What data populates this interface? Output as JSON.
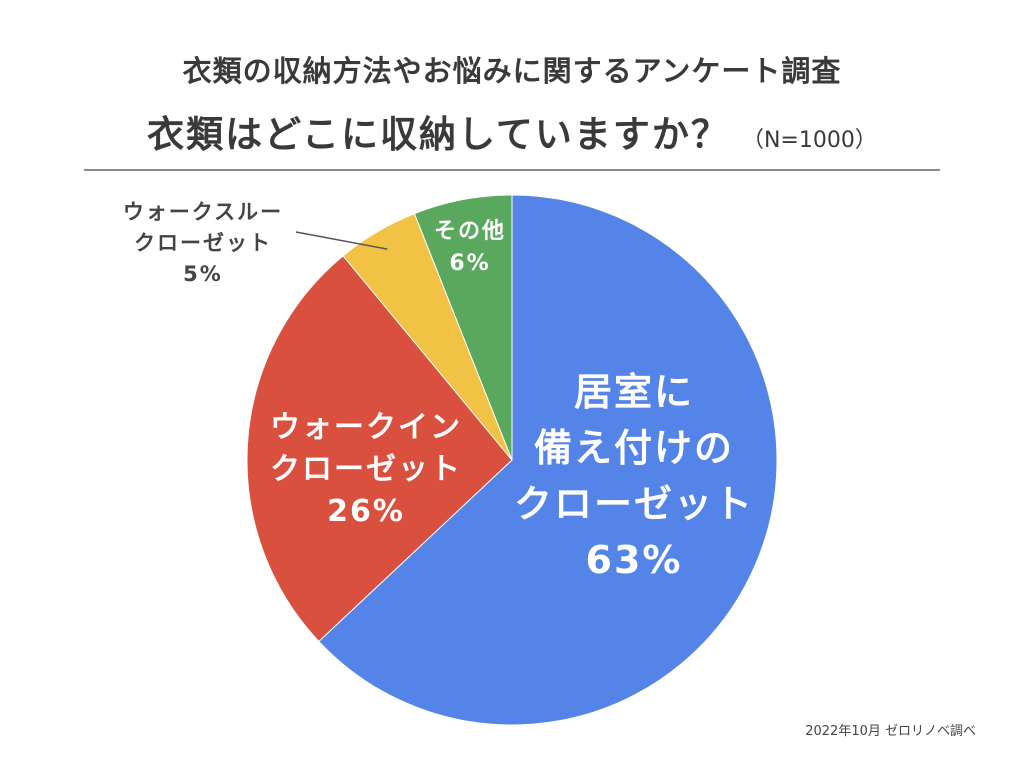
{
  "header": {
    "survey_title": "衣類の収納方法やお悩みに関するアンケート調査",
    "question": "衣類はどこに収納していますか？",
    "sample_size": "（N=1000）"
  },
  "chart_data": {
    "type": "pie",
    "categories": [
      "居室に備え付けのクローゼット",
      "ウォークインクローゼット",
      "ウォークスルークローゼット",
      "その他"
    ],
    "values": [
      63,
      26,
      5,
      6
    ],
    "slices": [
      {
        "label_lines": [
          "居室に",
          "備え付けの",
          "クローゼット"
        ],
        "percent_label": "63%",
        "value": 63,
        "color": "#5484e8"
      },
      {
        "label_lines": [
          "ウォークイン",
          "クローゼット"
        ],
        "percent_label": "26%",
        "value": 26,
        "color": "#d9503f"
      },
      {
        "label_lines": [
          "ウォークスルー",
          "クローゼット"
        ],
        "percent_label": "5%",
        "value": 5,
        "color": "#f1c244"
      },
      {
        "label_lines": [
          "その他"
        ],
        "percent_label": "6%",
        "value": 6,
        "color": "#5aa75e"
      }
    ],
    "start": "top",
    "direction": "clockwise"
  },
  "footer": {
    "source": "2022年10月 ゼロリノベ調べ"
  }
}
